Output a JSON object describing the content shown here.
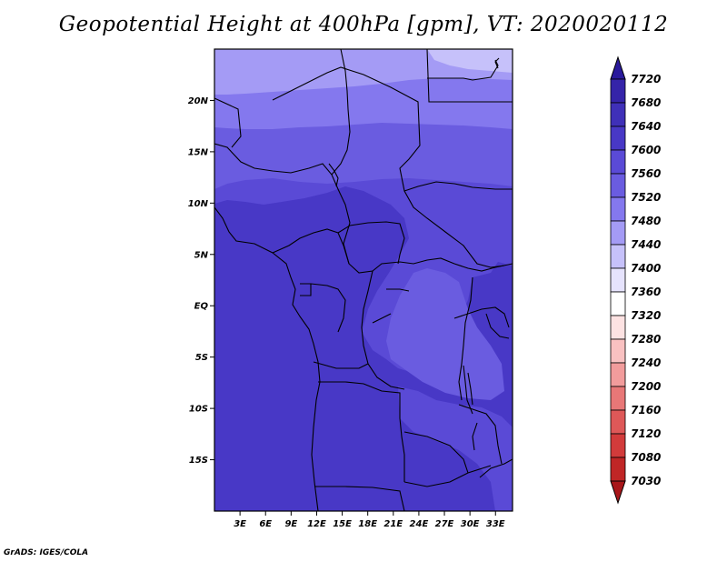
{
  "title": "Geopotential Height at 400hPa [gpm], VT: 2020020112",
  "credit": "GrADS: IGES/COLA",
  "axes": {
    "lat_ticks": [
      {
        "label": "20N",
        "lat": 20
      },
      {
        "label": "15N",
        "lat": 15
      },
      {
        "label": "10N",
        "lat": 10
      },
      {
        "label": "5N",
        "lat": 5
      },
      {
        "label": "EQ",
        "lat": 0
      },
      {
        "label": "5S",
        "lat": -5
      },
      {
        "label": "10S",
        "lat": -10
      },
      {
        "label": "15S",
        "lat": -15
      }
    ],
    "lon_ticks": [
      {
        "label": "3E",
        "lon": 3
      },
      {
        "label": "6E",
        "lon": 6
      },
      {
        "label": "9E",
        "lon": 9
      },
      {
        "label": "12E",
        "lon": 12
      },
      {
        "label": "15E",
        "lon": 15
      },
      {
        "label": "18E",
        "lon": 18
      },
      {
        "label": "21E",
        "lon": 21
      },
      {
        "label": "24E",
        "lon": 24
      },
      {
        "label": "27E",
        "lon": 27
      },
      {
        "label": "30E",
        "lon": 30
      },
      {
        "label": "33E",
        "lon": 33
      }
    ],
    "lon_range": [
      0,
      35
    ],
    "lat_range": [
      -20,
      25
    ]
  },
  "colorbar": {
    "levels": [
      "7720",
      "7680",
      "7640",
      "7600",
      "7560",
      "7520",
      "7480",
      "7440",
      "7400",
      "7360",
      "7320",
      "7280",
      "7240",
      "7200",
      "7160",
      "7120",
      "7080",
      "7030"
    ],
    "colors": [
      "#2a1a9c",
      "#3524a9",
      "#3f30b8",
      "#4838c6",
      "#5a4ad6",
      "#6a5ce0",
      "#8478ee",
      "#a49bf5",
      "#c6c1fa",
      "#e6e3fd",
      "#ffffff",
      "#fde2e2",
      "#f9c1c1",
      "#f29c9c",
      "#e87777",
      "#de5858",
      "#d23b3b",
      "#c02626",
      "#a8161a"
    ]
  },
  "regions": [
    {
      "level": 7440,
      "color": "#c6c1fa"
    },
    {
      "level": 7480,
      "color": "#a49bf5"
    },
    {
      "level": 7520,
      "color": "#8478ee"
    },
    {
      "level": 7560,
      "color": "#6a5ce0"
    },
    {
      "level": 7600,
      "color": "#5a4ad6"
    },
    {
      "level": 7640,
      "color": "#4838c6"
    }
  ]
}
